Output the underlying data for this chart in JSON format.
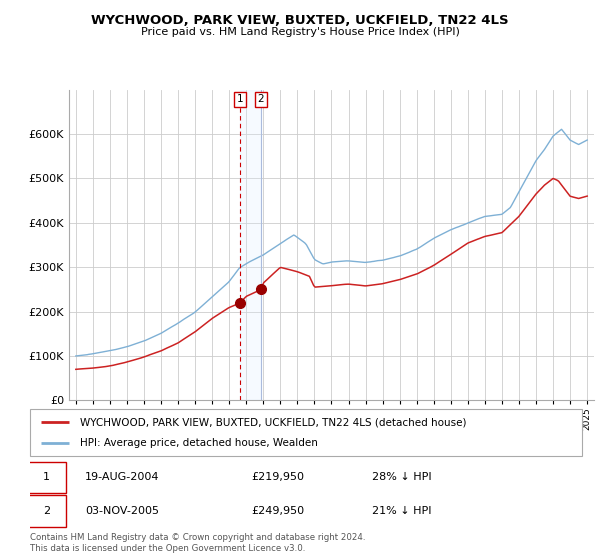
{
  "title": "WYCHWOOD, PARK VIEW, BUXTED, UCKFIELD, TN22 4LS",
  "subtitle": "Price paid vs. HM Land Registry's House Price Index (HPI)",
  "hpi_label": "HPI: Average price, detached house, Wealden",
  "property_label": "WYCHWOOD, PARK VIEW, BUXTED, UCKFIELD, TN22 4LS (detached house)",
  "sale1_date": "19-AUG-2004",
  "sale1_price": "£219,950",
  "sale1_hpi": "28% ↓ HPI",
  "sale2_date": "03-NOV-2005",
  "sale2_price": "£249,950",
  "sale2_hpi": "21% ↓ HPI",
  "footer": "Contains HM Land Registry data © Crown copyright and database right 2024.\nThis data is licensed under the Open Government Licence v3.0.",
  "hpi_color": "#7eb0d5",
  "property_color": "#cc2222",
  "marker_color": "#990000",
  "vline1_color": "#cc0000",
  "vline2_color": "#aabbdd",
  "fill_color": "#ddeeff",
  "background_color": "#ffffff",
  "grid_color": "#cccccc",
  "ylim": [
    0,
    700000
  ],
  "yticks": [
    0,
    100000,
    200000,
    300000,
    400000,
    500000,
    600000
  ],
  "sale1_year": 2004.63,
  "sale2_year": 2005.84,
  "sale1_price_val": 219950,
  "sale2_price_val": 249950
}
